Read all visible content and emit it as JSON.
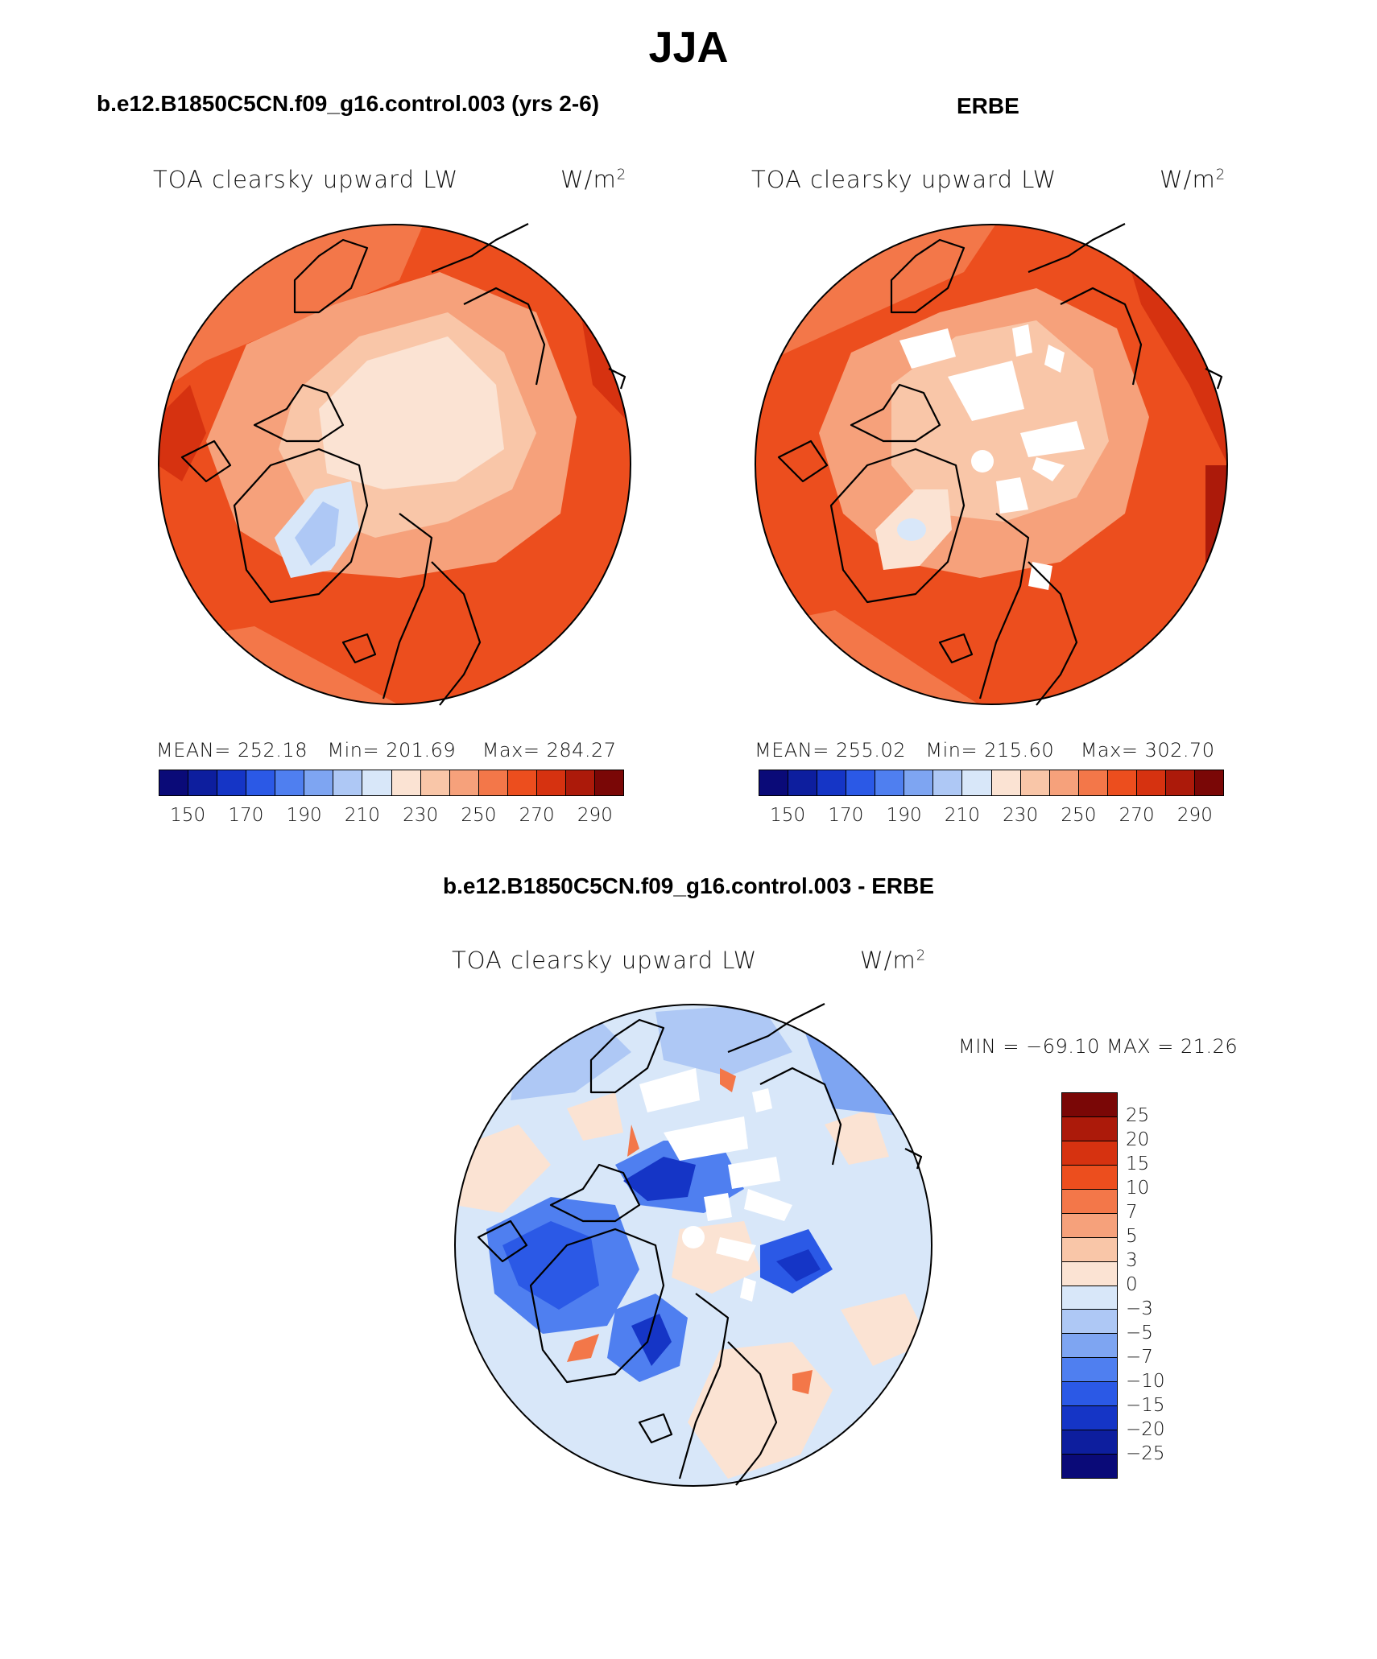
{
  "title": "JJA",
  "panels": {
    "model": {
      "title": "b.e12.B1850C5CN.f09_g16.control.003 (yrs 2-6)",
      "variable": "TOA clearsky upward LW",
      "units": "W/m",
      "units_exp": "2",
      "mean_label": "MEAN=",
      "mean": "252.18",
      "min_label": "Min=",
      "min": "201.69",
      "max_label": "Max=",
      "max": "284.27"
    },
    "obs": {
      "title": "ERBE",
      "variable": "TOA clearsky upward LW",
      "units": "W/m",
      "units_exp": "2",
      "mean_label": "MEAN=",
      "mean": "255.02",
      "min_label": "Min=",
      "min": "215.60",
      "max_label": "Max=",
      "max": "302.70"
    },
    "diff": {
      "title": "b.e12.B1850C5CN.f09_g16.control.003 - ERBE",
      "variable": "TOA clearsky upward LW",
      "units": "W/m",
      "units_exp": "2",
      "minmax_text": "MIN = −69.10 MAX =  21.26"
    }
  },
  "abs_colorbar": {
    "ticks": [
      "150",
      "170",
      "190",
      "210",
      "230",
      "250",
      "270",
      "290"
    ],
    "colors": [
      "#0a0a78",
      "#0d1e9e",
      "#1535c6",
      "#2b59e6",
      "#4f7ff0",
      "#7ea5f2",
      "#aec8f5",
      "#d8e7f9",
      "#fbe3d3",
      "#f9c6a8",
      "#f6a17b",
      "#f37749",
      "#ec4e1e",
      "#d63210",
      "#ac1a0a",
      "#7a0706"
    ]
  },
  "diff_colorbar": {
    "ticks": [
      "25",
      "20",
      "15",
      "10",
      "7",
      "5",
      "3",
      "0",
      "−3",
      "−5",
      "−7",
      "−10",
      "−15",
      "−20",
      "−25"
    ],
    "colors": [
      "#7a0706",
      "#ac1a0a",
      "#d63210",
      "#ec4e1e",
      "#f37749",
      "#f6a17b",
      "#f9c6a8",
      "#fbe3d3",
      "#d8e7f9",
      "#aec8f5",
      "#7ea5f2",
      "#4f7ff0",
      "#2b59e6",
      "#1535c6",
      "#0d1e9e",
      "#0a0a78"
    ]
  }
}
